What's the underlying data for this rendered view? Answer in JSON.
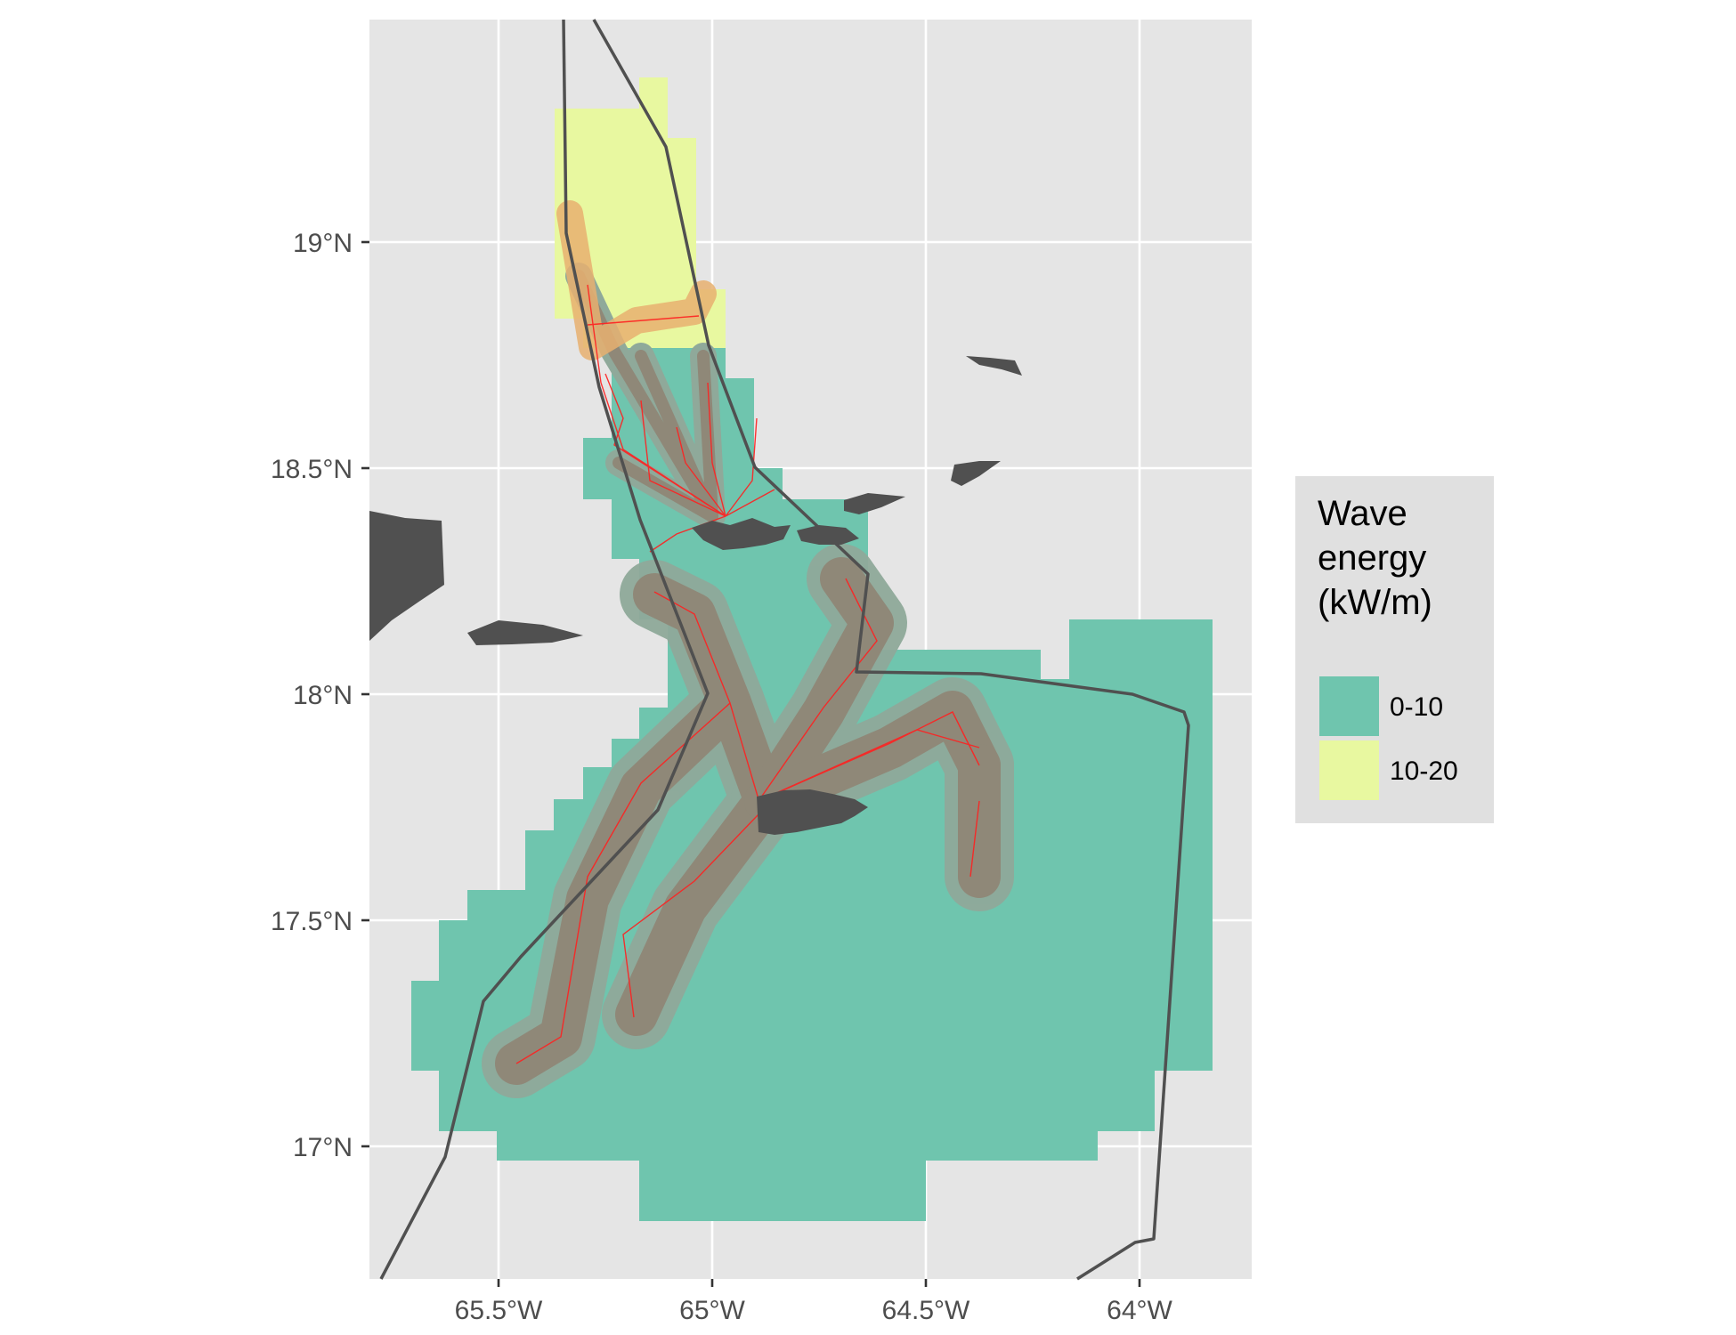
{
  "map": {
    "axes": {
      "x_ticks": [
        "65.5°W",
        "65°W",
        "64.5°W",
        "64°W"
      ],
      "y_ticks": [
        "19°N",
        "18.5°N",
        "18°N",
        "17.5°N",
        "17°N"
      ]
    },
    "legend": {
      "title_lines": [
        "Wave",
        "energy",
        "(kW/m)"
      ],
      "items": [
        {
          "label": "0-10",
          "color": "#6fc5ae"
        },
        {
          "label": "10-20",
          "color": "#e8f8a0"
        }
      ]
    },
    "colors": {
      "panel_background": "#e5e5e5",
      "grid": "#ffffff",
      "land": "#505050",
      "boundary_line": "#505050",
      "cable_route": "#ff2020",
      "buffer_outer": "#8fa99a",
      "buffer_inner": "#8f8878",
      "buffer_high_energy": "#e8b070"
    }
  }
}
